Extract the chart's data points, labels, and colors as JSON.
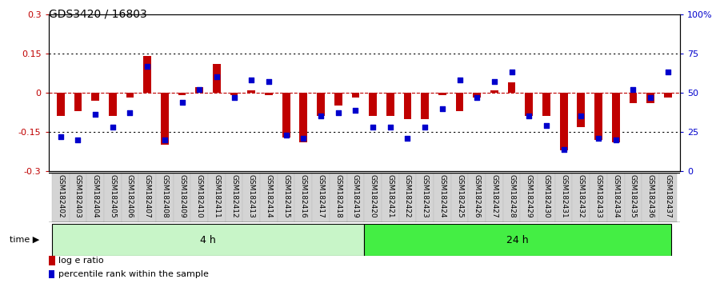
{
  "title": "GDS3420 / 16803",
  "samples": [
    "GSM182402",
    "GSM182403",
    "GSM182404",
    "GSM182405",
    "GSM182406",
    "GSM182407",
    "GSM182408",
    "GSM182409",
    "GSM182410",
    "GSM182411",
    "GSM182412",
    "GSM182413",
    "GSM182414",
    "GSM182415",
    "GSM182416",
    "GSM182417",
    "GSM182418",
    "GSM182419",
    "GSM182420",
    "GSM182421",
    "GSM182422",
    "GSM182423",
    "GSM182424",
    "GSM182425",
    "GSM182426",
    "GSM182427",
    "GSM182428",
    "GSM182429",
    "GSM182430",
    "GSM182431",
    "GSM182432",
    "GSM182433",
    "GSM182434",
    "GSM182435",
    "GSM182436",
    "GSM182437"
  ],
  "log_ratio": [
    -0.09,
    -0.07,
    -0.03,
    -0.09,
    -0.02,
    0.14,
    -0.2,
    -0.01,
    0.02,
    0.11,
    -0.01,
    0.01,
    -0.01,
    -0.17,
    -0.19,
    -0.09,
    -0.05,
    -0.02,
    -0.09,
    -0.09,
    -0.1,
    -0.1,
    -0.01,
    -0.07,
    -0.02,
    0.01,
    0.04,
    -0.09,
    -0.09,
    -0.22,
    -0.13,
    -0.18,
    -0.19,
    -0.04,
    -0.04,
    -0.02
  ],
  "percentile": [
    22,
    20,
    36,
    28,
    37,
    67,
    20,
    44,
    52,
    60,
    47,
    58,
    57,
    23,
    21,
    35,
    37,
    39,
    28,
    28,
    21,
    28,
    40,
    58,
    47,
    57,
    63,
    35,
    29,
    14,
    35,
    21,
    20,
    52,
    47,
    63
  ],
  "group1_label": "4 h",
  "group2_label": "24 h",
  "group1_count": 18,
  "group2_count": 18,
  "ylim_left": [
    -0.3,
    0.3
  ],
  "ylim_right": [
    0,
    100
  ],
  "bar_color": "#C00000",
  "dot_color": "#0000CC",
  "group1_bg": "#C8F5C8",
  "group2_bg": "#44EE44",
  "bar_width": 0.45,
  "dot_size": 13,
  "tick_fontsize": 6.5,
  "legend_fontsize": 8,
  "title_fontsize": 10,
  "axis_fontsize": 8
}
